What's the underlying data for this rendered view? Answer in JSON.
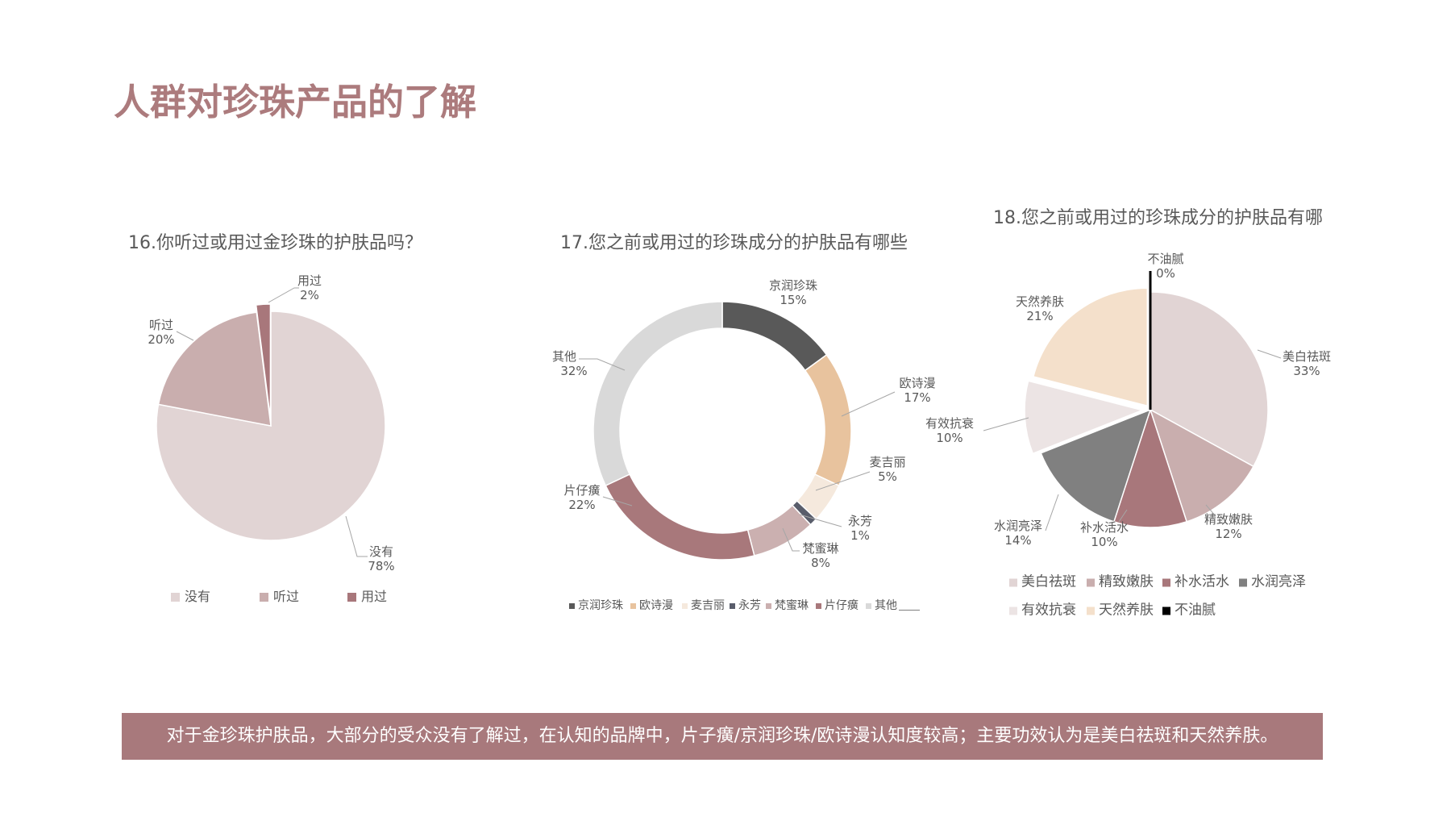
{
  "page": {
    "title": "人群对珍珠产品的了解",
    "summary": "对于金珍珠护肤品，大部分的受众没有了解过，在认知的品牌中，片子癀/京润珍珠/欧诗漫认知度较高；主要功效认为是美白祛斑和天然养肤。"
  },
  "chart_data": [
    {
      "type": "pie",
      "title": "16.你听过或用过金珍珠的护肤品吗？",
      "categories": [
        "没有",
        "听过",
        "用过"
      ],
      "values": [
        78,
        20,
        2
      ],
      "value_labels": [
        "78%",
        "20%",
        "2%"
      ],
      "colors": [
        "#e1d4d4",
        "#c9aeae",
        "#a8777b"
      ],
      "legend": "bottom"
    },
    {
      "type": "pie",
      "style": "donut",
      "title": "17.您之前或用过的珍珠成分的护肤品有哪些",
      "categories": [
        "京润珍珠",
        "欧诗漫",
        "麦吉丽",
        "永芳",
        "梵蜜琳",
        "片仔癀",
        "其他"
      ],
      "values": [
        15,
        17,
        5,
        1,
        8,
        22,
        32
      ],
      "value_labels": [
        "15%",
        "17%",
        "5%",
        "1%",
        "8%",
        "22%",
        "32%"
      ],
      "colors": [
        "#595959",
        "#e8c39e",
        "#f5e9dd",
        "#595d6b",
        "#cbb0b0",
        "#a8787b",
        "#d9d9d9"
      ],
      "legend": "bottom"
    },
    {
      "type": "pie",
      "title": "18.您之前或用过的珍珠成分的护肤品有哪",
      "categories": [
        "美白祛斑",
        "精致嫩肤",
        "补水活水",
        "水润亮泽",
        "有效抗衰",
        "天然养肤",
        "不油腻"
      ],
      "values": [
        33,
        12,
        10,
        14,
        10,
        21,
        0
      ],
      "value_labels": [
        "33%",
        "12%",
        "10%",
        "14%",
        "10%",
        "21%",
        "0%"
      ],
      "colors": [
        "#e1d4d4",
        "#c9aeae",
        "#a8777b",
        "#808080",
        "#ece4e4",
        "#f4e0cb",
        "#000000"
      ],
      "legend": "bottom"
    }
  ]
}
